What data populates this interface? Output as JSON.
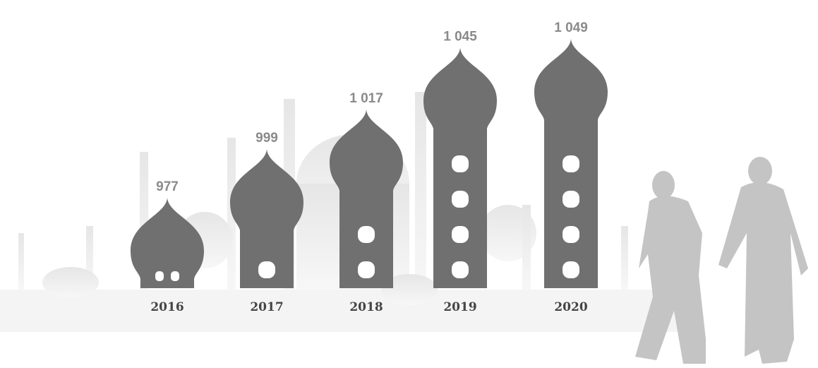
{
  "chart_data": {
    "type": "bar",
    "categories": [
      "2016",
      "2017",
      "2018",
      "2019",
      "2020"
    ],
    "values": [
      977,
      999,
      1017,
      1045,
      1049
    ],
    "value_labels": [
      "977",
      "999",
      "1 017",
      "1 045",
      "1 049"
    ],
    "color": "#707070"
  }
}
